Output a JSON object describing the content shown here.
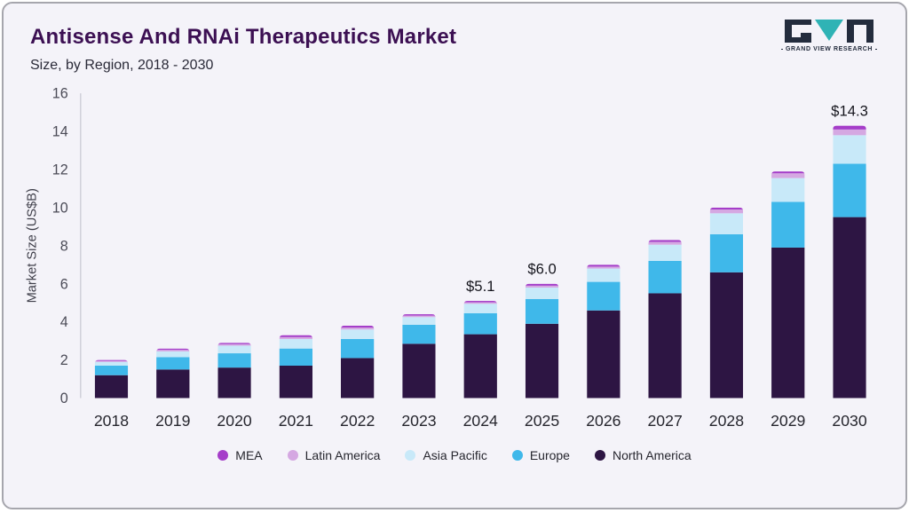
{
  "header": {
    "title": "Antisense And RNAi Therapeutics Market",
    "subtitle": "Size, by Region, 2018 - 2030"
  },
  "logo": {
    "text": "GRAND VIEW RESEARCH",
    "dark_color": "#232c3d",
    "teal_color": "#2fb3b5"
  },
  "chart_data": {
    "type": "bar",
    "stacked": true,
    "title": "Antisense And RNAi Therapeutics Market Size, by Region, 2018 - 2030",
    "xlabel": "",
    "ylabel": "Market Size (US$B)",
    "ylim": [
      0,
      16
    ],
    "yticks": [
      0,
      2,
      4,
      6,
      8,
      10,
      12,
      14,
      16
    ],
    "grid": false,
    "legend_position": "bottom",
    "categories": [
      "2018",
      "2019",
      "2020",
      "2021",
      "2022",
      "2023",
      "2024",
      "2025",
      "2026",
      "2027",
      "2028",
      "2029",
      "2030"
    ],
    "series": [
      {
        "name": "North America",
        "color": "#2d1543",
        "values": [
          1.2,
          1.5,
          1.6,
          1.7,
          2.1,
          2.85,
          3.35,
          3.9,
          4.6,
          5.5,
          6.6,
          7.9,
          9.5
        ]
      },
      {
        "name": "Europe",
        "color": "#3fb8ea",
        "values": [
          0.5,
          0.65,
          0.75,
          0.9,
          1.0,
          1.0,
          1.1,
          1.3,
          1.5,
          1.7,
          2.0,
          2.4,
          2.8
        ]
      },
      {
        "name": "Asia Pacific",
        "color": "#c8e9f9",
        "values": [
          0.2,
          0.3,
          0.4,
          0.5,
          0.5,
          0.4,
          0.5,
          0.6,
          0.7,
          0.85,
          1.1,
          1.25,
          1.5
        ]
      },
      {
        "name": "Latin America",
        "color": "#d5a8e2",
        "values": [
          0.05,
          0.08,
          0.08,
          0.1,
          0.1,
          0.08,
          0.08,
          0.1,
          0.1,
          0.15,
          0.2,
          0.25,
          0.3
        ]
      },
      {
        "name": "MEA",
        "color": "#a53dc9",
        "values": [
          0.05,
          0.07,
          0.07,
          0.1,
          0.1,
          0.07,
          0.07,
          0.1,
          0.1,
          0.1,
          0.1,
          0.1,
          0.2
        ]
      }
    ],
    "legend_order": [
      "MEA",
      "Latin America",
      "Asia Pacific",
      "Europe",
      "North America"
    ],
    "annotations": [
      {
        "category": "2024",
        "label": "$5.1"
      },
      {
        "category": "2025",
        "label": "$6.0"
      },
      {
        "category": "2030",
        "label": "$14.3"
      }
    ]
  },
  "style": {
    "card_bg": "#f4f3f9",
    "title_color": "#3c1053",
    "axis_line_color": "#c8c8d2",
    "tick_label_color": "#4b4b57",
    "x_label_color": "#26262e",
    "annotation_color": "#15151d"
  }
}
